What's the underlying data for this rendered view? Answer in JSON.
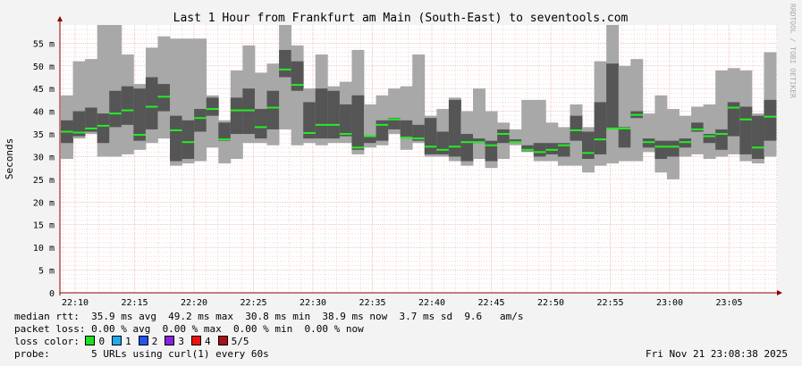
{
  "chart_data": {
    "type": "smokeping",
    "title": "Last 1 Hour from Frankfurt am Main (South-East) to seventools.com",
    "ylabel": "Seconds",
    "watermark": "RRDTOOL / TOBI OETIKER",
    "ylim": [
      0,
      59
    ],
    "y_ticks": [
      0,
      5,
      10,
      15,
      20,
      25,
      30,
      35,
      40,
      45,
      50,
      55
    ],
    "y_tick_labels": [
      "0",
      "5 m",
      "10 m",
      "15 m",
      "20 m",
      "25 m",
      "30 m",
      "35 m",
      "40 m",
      "45 m",
      "50 m",
      "55 m"
    ],
    "x_tick_labels": [
      "22:10",
      "22:15",
      "22:20",
      "22:25",
      "22:30",
      "22:35",
      "22:40",
      "22:45",
      "22:50",
      "22:55",
      "23:00",
      "23:05"
    ],
    "x_minutes": [
      0,
      5,
      10,
      15,
      20,
      25,
      30,
      35,
      40,
      45,
      50,
      55
    ],
    "colors": {
      "smoke_light": "#a8a8a8",
      "smoke_dark": "#555555",
      "median": "#22ee22",
      "grid_minor": "#e8b0b0",
      "axis": "#8b0000"
    },
    "series": [
      {
        "min": 29.5,
        "q1": 33,
        "median": 35.5,
        "q3": 38,
        "max": 43.5
      },
      {
        "min": 34,
        "q1": 34.5,
        "median": 35.3,
        "q3": 40,
        "max": 51
      },
      {
        "min": 35,
        "q1": 35.5,
        "median": 36.2,
        "q3": 40.8,
        "max": 51.5
      },
      {
        "min": 30,
        "q1": 33,
        "median": 36.8,
        "q3": 39.5,
        "max": 59
      },
      {
        "min": 30,
        "q1": 36.5,
        "median": 39.5,
        "q3": 44.5,
        "max": 59
      },
      {
        "min": 30.5,
        "q1": 37,
        "median": 40.2,
        "q3": 45.5,
        "max": 52.5
      },
      {
        "min": 31.5,
        "q1": 33.5,
        "median": 34.8,
        "q3": 45,
        "max": 46
      },
      {
        "min": 33,
        "q1": 36,
        "median": 41,
        "q3": 47.5,
        "max": 54
      },
      {
        "min": 34,
        "q1": 40,
        "median": 43.2,
        "q3": 46,
        "max": 56.5
      },
      {
        "min": 28,
        "q1": 29,
        "median": 35.8,
        "q3": 39,
        "max": 56
      },
      {
        "min": 28.5,
        "q1": 29.5,
        "median": 33.2,
        "q3": 38,
        "max": 56
      },
      {
        "min": 29,
        "q1": 35.5,
        "median": 38.5,
        "q3": 40.5,
        "max": 56
      },
      {
        "min": 32,
        "q1": 39,
        "median": 40.5,
        "q3": 43,
        "max": 43.5
      },
      {
        "min": 28.5,
        "q1": 33.5,
        "median": 33.8,
        "q3": 37.5,
        "max": 38
      },
      {
        "min": 29.5,
        "q1": 35,
        "median": 40.2,
        "q3": 43,
        "max": 49
      },
      {
        "min": 33,
        "q1": 35,
        "median": 40.2,
        "q3": 45,
        "max": 54.5
      },
      {
        "min": 33,
        "q1": 34,
        "median": 36.5,
        "q3": 40.5,
        "max": 48.5
      },
      {
        "min": 32.5,
        "q1": 36,
        "median": 40.8,
        "q3": 44.5,
        "max": 50.5
      },
      {
        "min": 36,
        "q1": 47.5,
        "median": 49.2,
        "q3": 53.5,
        "max": 59
      },
      {
        "min": 32.5,
        "q1": 44.5,
        "median": 45.8,
        "q3": 51,
        "max": 54.5
      },
      {
        "min": 33,
        "q1": 34,
        "median": 35.2,
        "q3": 42,
        "max": 45
      },
      {
        "min": 32.5,
        "q1": 34,
        "median": 37,
        "q3": 45,
        "max": 52.5
      },
      {
        "min": 33,
        "q1": 34,
        "median": 37,
        "q3": 44.5,
        "max": 45.5
      },
      {
        "min": 33,
        "q1": 34.5,
        "median": 35,
        "q3": 41.5,
        "max": 46.5
      },
      {
        "min": 30.5,
        "q1": 31.5,
        "median": 32,
        "q3": 43.5,
        "max": 53.5
      },
      {
        "min": 32,
        "q1": 33,
        "median": 34.5,
        "q3": 34.5,
        "max": 41.5
      },
      {
        "min": 32.5,
        "q1": 33.5,
        "median": 37,
        "q3": 38,
        "max": 43.5
      },
      {
        "min": 35,
        "q1": 36,
        "median": 38.2,
        "q3": 38.5,
        "max": 45
      },
      {
        "min": 31.5,
        "q1": 34,
        "median": 34.2,
        "q3": 38,
        "max": 45.5
      },
      {
        "min": 33,
        "q1": 33.5,
        "median": 34,
        "q3": 37,
        "max": 52.5
      },
      {
        "min": 30,
        "q1": 30.5,
        "median": 32.2,
        "q3": 38.5,
        "max": 39
      },
      {
        "min": 30,
        "q1": 30.5,
        "median": 31.5,
        "q3": 35.5,
        "max": 40.5
      },
      {
        "min": 29,
        "q1": 30,
        "median": 32.2,
        "q3": 42.5,
        "max": 43
      },
      {
        "min": 28,
        "q1": 29,
        "median": 33.2,
        "q3": 35,
        "max": 40
      },
      {
        "min": 29.5,
        "q1": 33,
        "median": 33.2,
        "q3": 34,
        "max": 45
      },
      {
        "min": 27.5,
        "q1": 29,
        "median": 32.5,
        "q3": 33.5,
        "max": 40
      },
      {
        "min": 29.5,
        "q1": 33,
        "median": 35,
        "q3": 36,
        "max": 37.5
      },
      {
        "min": 32.5,
        "q1": 33,
        "median": 33.2,
        "q3": 33.8,
        "max": 36
      },
      {
        "min": 31,
        "q1": 31.2,
        "median": 31.5,
        "q3": 32.5,
        "max": 42.5
      },
      {
        "min": 29,
        "q1": 30,
        "median": 31,
        "q3": 33,
        "max": 42.5
      },
      {
        "min": 29,
        "q1": 30.5,
        "median": 31.5,
        "q3": 33,
        "max": 37.5
      },
      {
        "min": 28,
        "q1": 30,
        "median": 32.5,
        "q3": 33,
        "max": 36.5
      },
      {
        "min": 28,
        "q1": 33.5,
        "median": 35.8,
        "q3": 39,
        "max": 41.5
      },
      {
        "min": 26.5,
        "q1": 29.5,
        "median": 30.8,
        "q3": 35.5,
        "max": 36.5
      },
      {
        "min": 28,
        "q1": 30.5,
        "median": 33.8,
        "q3": 42,
        "max": 51
      },
      {
        "min": 28.5,
        "q1": 36,
        "median": 36.2,
        "q3": 50.5,
        "max": 59
      },
      {
        "min": 29,
        "q1": 32,
        "median": 36.2,
        "q3": 36.5,
        "max": 50
      },
      {
        "min": 29,
        "q1": 38.5,
        "median": 39.2,
        "q3": 40,
        "max": 51.5
      },
      {
        "min": 31,
        "q1": 32,
        "median": 33.2,
        "q3": 34,
        "max": 39.5
      },
      {
        "min": 26.5,
        "q1": 29.5,
        "median": 32.2,
        "q3": 33.5,
        "max": 43.5
      },
      {
        "min": 25,
        "q1": 30,
        "median": 32.2,
        "q3": 33.5,
        "max": 40.5
      },
      {
        "min": 30,
        "q1": 32,
        "median": 33.2,
        "q3": 34,
        "max": 39
      },
      {
        "min": 30.5,
        "q1": 35.5,
        "median": 36,
        "q3": 37.5,
        "max": 41
      },
      {
        "min": 29.5,
        "q1": 33,
        "median": 34.5,
        "q3": 35,
        "max": 41.5
      },
      {
        "min": 30,
        "q1": 31.5,
        "median": 35,
        "q3": 36,
        "max": 49
      },
      {
        "min": 30.5,
        "q1": 34.5,
        "median": 40.8,
        "q3": 42,
        "max": 49.5
      },
      {
        "min": 29,
        "q1": 30.5,
        "median": 38.2,
        "q3": 41,
        "max": 49
      },
      {
        "min": 28.5,
        "q1": 29.5,
        "median": 32,
        "q3": 39,
        "max": 39.5
      },
      {
        "min": 30,
        "q1": 33.5,
        "median": 38.8,
        "q3": 42.5,
        "max": 53
      }
    ]
  },
  "legend": {
    "median_rtt": "median rtt:  35.9 ms avg  49.2 ms max  30.8 ms min  38.9 ms now  3.7 ms sd  9.6   am/s",
    "packet_loss": "packet loss: 0.00 % avg  0.00 % max  0.00 % min  0.00 % now",
    "loss_color_label": "loss color:",
    "loss_colors": [
      {
        "label": "0",
        "color": "#22dd22"
      },
      {
        "label": "1",
        "color": "#22aaee"
      },
      {
        "label": "2",
        "color": "#2255ee"
      },
      {
        "label": "3",
        "color": "#8822dd"
      },
      {
        "label": "4",
        "color": "#ee1111"
      },
      {
        "label": "5/5",
        "color": "#aa1111"
      }
    ],
    "probe": "probe:       5 URLs using curl(1) every 60s",
    "timestamp": "Fri Nov 21 23:08:38 2025"
  }
}
